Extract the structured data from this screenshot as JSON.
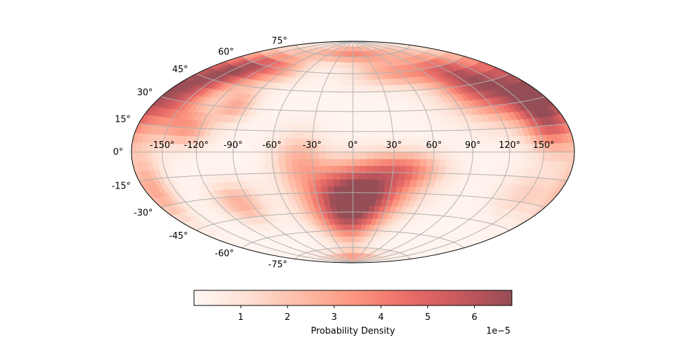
{
  "chart_data": {
    "type": "heatmap",
    "projection": "hammer",
    "colormap": "Reds",
    "colormap_stops": [
      "#fff5f0",
      "#fdd4c2",
      "#fca082",
      "#fb6b4b",
      "#e32f27",
      "#b11218",
      "#67000d"
    ],
    "alpha": 0.7,
    "grid": true,
    "grid_color": "#b0b0b0",
    "lon_ticks": [
      -150,
      -120,
      -90,
      -60,
      -30,
      0,
      30,
      60,
      90,
      120,
      150
    ],
    "lon_tick_labels": [
      "-150°",
      "-120°",
      "-90°",
      "-60°",
      "-30°",
      "0°",
      "30°",
      "60°",
      "90°",
      "120°",
      "150°"
    ],
    "lat_ticks": [
      75,
      60,
      45,
      30,
      15,
      0,
      -15,
      -30,
      -45,
      -60,
      -75
    ],
    "lat_tick_labels": [
      "75°",
      "60°",
      "45°",
      "30°",
      "15°",
      "0°",
      "-15°",
      "-30°",
      "-45°",
      "-60°",
      "-75°"
    ],
    "density_range": [
      0,
      6.8e-05
    ],
    "hotspots": [
      {
        "lon": 5,
        "lat": -28,
        "lon_sigma": 28,
        "lat_sigma": 14,
        "value": 6.3e-05
      },
      {
        "lon": -5,
        "lat": -50,
        "lon_sigma": 24,
        "lat_sigma": 14,
        "value": 4.8e-05
      },
      {
        "lon": 40,
        "lat": -12,
        "lon_sigma": 20,
        "lat_sigma": 9,
        "value": 3e-05
      },
      {
        "lon": -40,
        "lat": -5,
        "lon_sigma": 14,
        "lat_sigma": 14,
        "value": 2.2e-05
      },
      {
        "lon": 130,
        "lat": 45,
        "lon_sigma": 30,
        "lat_sigma": 16,
        "value": 6.2e-05
      },
      {
        "lon": 160,
        "lat": 20,
        "lon_sigma": 16,
        "lat_sigma": 14,
        "value": 4.5e-05
      },
      {
        "lon": -165,
        "lat": 35,
        "lon_sigma": 22,
        "lat_sigma": 16,
        "value": 5.2e-05
      },
      {
        "lon": -140,
        "lat": 55,
        "lon_sigma": 22,
        "lat_sigma": 10,
        "value": 4.5e-05
      },
      {
        "lon": -100,
        "lat": 60,
        "lon_sigma": 25,
        "lat_sigma": 8,
        "value": 3e-05
      },
      {
        "lon": -130,
        "lat": 15,
        "lon_sigma": 15,
        "lat_sigma": 8,
        "value": 2.5e-05
      },
      {
        "lon": -100,
        "lat": 32,
        "lon_sigma": 12,
        "lat_sigma": 8,
        "value": 2.5e-05
      },
      {
        "lon": 0,
        "lat": 78,
        "lon_sigma": 80,
        "lat_sigma": 6,
        "value": 3.5e-05
      },
      {
        "lon": 60,
        "lat": 60,
        "lon_sigma": 40,
        "lat_sigma": 8,
        "value": 3e-05
      },
      {
        "lon": -170,
        "lat": -20,
        "lon_sigma": 12,
        "lat_sigma": 14,
        "value": 2.5e-05
      },
      {
        "lon": -100,
        "lat": -35,
        "lon_sigma": 15,
        "lat_sigma": 10,
        "value": 2.5e-05
      },
      {
        "lon": 150,
        "lat": -25,
        "lon_sigma": 20,
        "lat_sigma": 10,
        "value": 1.5e-05
      },
      {
        "lon": 0,
        "lat": -85,
        "lon_sigma": 90,
        "lat_sigma": 5,
        "value": 3e-05
      }
    ],
    "colorbar": {
      "label": "Probability Density",
      "ticks": [
        1,
        2,
        3,
        4,
        5,
        6
      ],
      "tick_labels": [
        "1",
        "2",
        "3",
        "4",
        "5",
        "6"
      ],
      "range": [
        0,
        6.8
      ],
      "offset_label": "1e−5",
      "orientation": "horizontal"
    }
  }
}
